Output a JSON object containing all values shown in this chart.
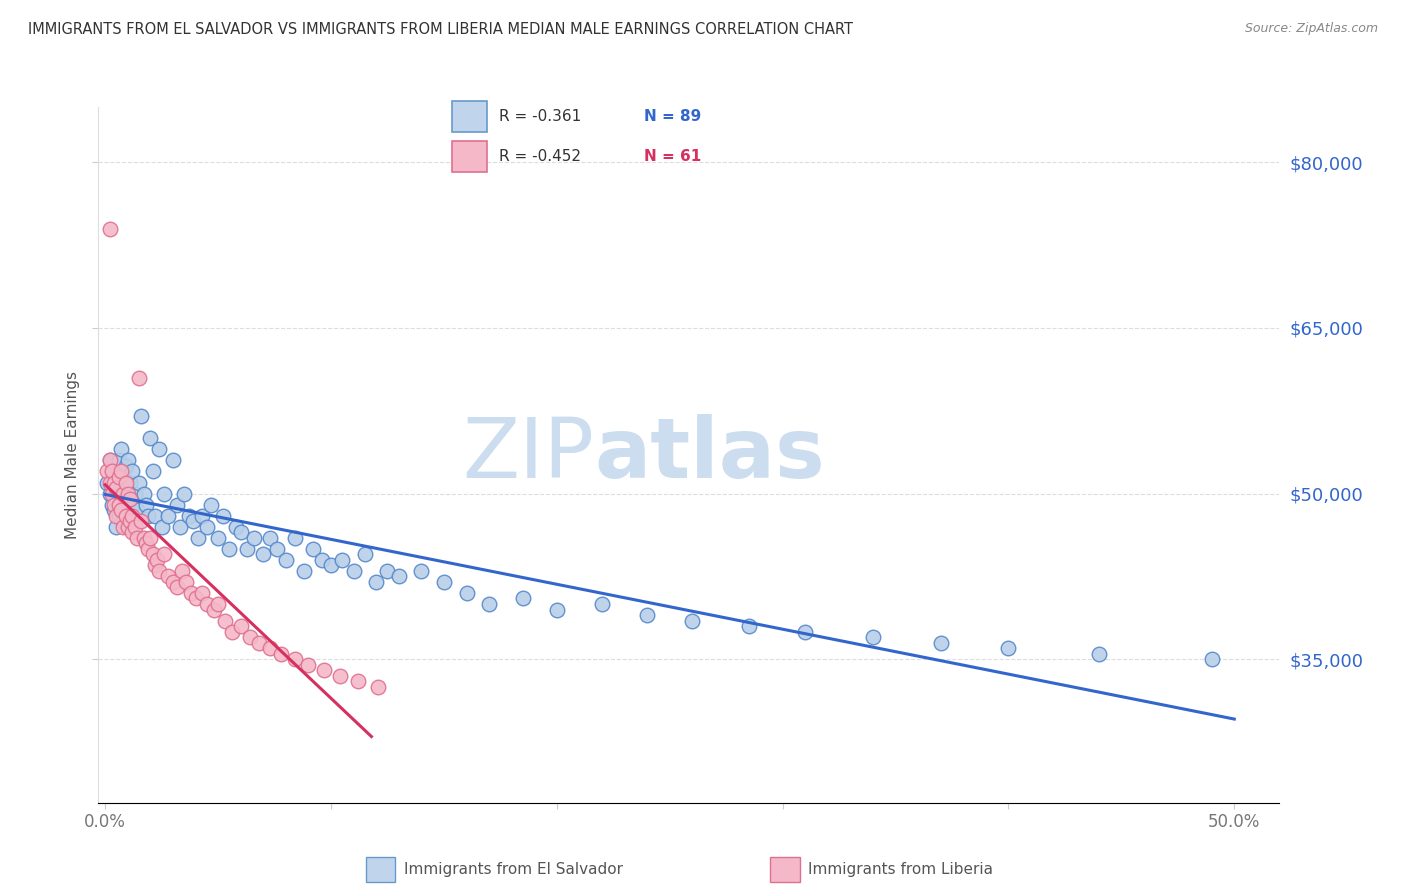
{
  "title": "IMMIGRANTS FROM EL SALVADOR VS IMMIGRANTS FROM LIBERIA MEDIAN MALE EARNINGS CORRELATION CHART",
  "source": "Source: ZipAtlas.com",
  "ylabel": "Median Male Earnings",
  "y_ticks": [
    35000,
    50000,
    65000,
    80000
  ],
  "y_tick_labels": [
    "$35,000",
    "$50,000",
    "$65,000",
    "$80,000"
  ],
  "ylim": [
    22000,
    85000
  ],
  "xlim": [
    -0.003,
    0.52
  ],
  "x_tick_positions": [
    0.0,
    0.1,
    0.2,
    0.3,
    0.4,
    0.5
  ],
  "x_tick_labels": [
    "0.0%",
    "",
    "",
    "",
    "",
    "50.0%"
  ],
  "legend_entry1_R": "R = -0.361",
  "legend_entry1_N": "N = 89",
  "legend_entry2_R": "R = -0.452",
  "legend_entry2_N": "N = 61",
  "legend_entry1_label": "Immigrants from El Salvador",
  "legend_entry2_label": "Immigrants from Liberia",
  "trendline1_color": "#3366cc",
  "trendline2_color": "#d63060",
  "scatter1_facecolor": "#b8cfe8",
  "scatter2_facecolor": "#f4b8c8",
  "scatter1_edgecolor": "#5588cc",
  "scatter2_edgecolor": "#e07090",
  "legend1_facecolor": "#c0d4ec",
  "legend1_edgecolor": "#6699cc",
  "legend2_facecolor": "#f4b8c8",
  "legend2_edgecolor": "#e07090",
  "watermark_zip_color": "#ccddf0",
  "watermark_atlas_color": "#ccddf0",
  "background_color": "#ffffff",
  "grid_color": "#dddddd",
  "title_color": "#333333",
  "ylabel_color": "#555555",
  "ytick_color": "#3366cc",
  "xtick_color": "#777777",
  "source_color": "#888888",
  "bottom_legend_color": "#555555",
  "el_salvador_x": [
    0.001,
    0.002,
    0.002,
    0.003,
    0.003,
    0.004,
    0.004,
    0.005,
    0.005,
    0.005,
    0.006,
    0.006,
    0.006,
    0.007,
    0.007,
    0.007,
    0.008,
    0.008,
    0.008,
    0.009,
    0.009,
    0.01,
    0.01,
    0.011,
    0.011,
    0.012,
    0.012,
    0.013,
    0.014,
    0.015,
    0.016,
    0.017,
    0.018,
    0.019,
    0.02,
    0.021,
    0.022,
    0.024,
    0.025,
    0.026,
    0.028,
    0.03,
    0.032,
    0.033,
    0.035,
    0.037,
    0.039,
    0.041,
    0.043,
    0.045,
    0.047,
    0.05,
    0.052,
    0.055,
    0.058,
    0.06,
    0.063,
    0.066,
    0.07,
    0.073,
    0.076,
    0.08,
    0.084,
    0.088,
    0.092,
    0.096,
    0.1,
    0.105,
    0.11,
    0.115,
    0.12,
    0.125,
    0.13,
    0.14,
    0.15,
    0.16,
    0.17,
    0.185,
    0.2,
    0.22,
    0.24,
    0.26,
    0.285,
    0.31,
    0.34,
    0.37,
    0.4,
    0.44,
    0.49
  ],
  "el_salvador_y": [
    51000,
    53000,
    50000,
    52000,
    49000,
    51500,
    48500,
    52000,
    50000,
    47000,
    53000,
    50500,
    48000,
    54000,
    51000,
    49000,
    52000,
    50000,
    47500,
    52500,
    49500,
    53000,
    48000,
    51000,
    47000,
    52000,
    49000,
    50000,
    48500,
    51000,
    57000,
    50000,
    49000,
    48000,
    55000,
    52000,
    48000,
    54000,
    47000,
    50000,
    48000,
    53000,
    49000,
    47000,
    50000,
    48000,
    47500,
    46000,
    48000,
    47000,
    49000,
    46000,
    48000,
    45000,
    47000,
    46500,
    45000,
    46000,
    44500,
    46000,
    45000,
    44000,
    46000,
    43000,
    45000,
    44000,
    43500,
    44000,
    43000,
    44500,
    42000,
    43000,
    42500,
    43000,
    42000,
    41000,
    40000,
    40500,
    39500,
    40000,
    39000,
    38500,
    38000,
    37500,
    37000,
    36500,
    36000,
    35500,
    35000
  ],
  "liberia_x": [
    0.001,
    0.002,
    0.002,
    0.003,
    0.003,
    0.004,
    0.004,
    0.005,
    0.005,
    0.006,
    0.006,
    0.007,
    0.007,
    0.008,
    0.008,
    0.009,
    0.009,
    0.01,
    0.01,
    0.011,
    0.011,
    0.012,
    0.012,
    0.013,
    0.014,
    0.015,
    0.016,
    0.017,
    0.018,
    0.019,
    0.02,
    0.021,
    0.022,
    0.023,
    0.024,
    0.026,
    0.028,
    0.03,
    0.032,
    0.034,
    0.036,
    0.038,
    0.04,
    0.043,
    0.045,
    0.048,
    0.05,
    0.053,
    0.056,
    0.06,
    0.064,
    0.068,
    0.073,
    0.078,
    0.084,
    0.09,
    0.097,
    0.104,
    0.112,
    0.121,
    0.002
  ],
  "liberia_y": [
    52000,
    51000,
    53000,
    50000,
    52000,
    49000,
    51000,
    50500,
    48000,
    51500,
    49000,
    52000,
    48500,
    50000,
    47000,
    51000,
    48000,
    50000,
    47000,
    49500,
    47500,
    48000,
    46500,
    47000,
    46000,
    60500,
    47500,
    46000,
    45500,
    45000,
    46000,
    44500,
    43500,
    44000,
    43000,
    44500,
    42500,
    42000,
    41500,
    43000,
    42000,
    41000,
    40500,
    41000,
    40000,
    39500,
    40000,
    38500,
    37500,
    38000,
    37000,
    36500,
    36000,
    35500,
    35000,
    34500,
    34000,
    33500,
    33000,
    32500,
    74000
  ]
}
